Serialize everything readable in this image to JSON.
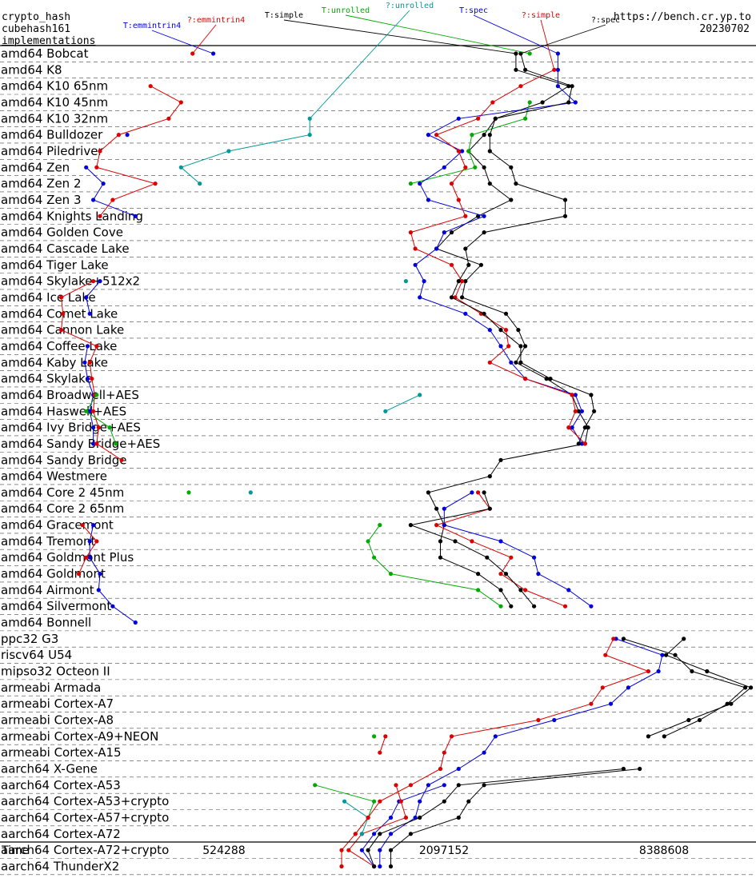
{
  "header": {
    "lines": [
      "crypto_hash",
      "cubehash161",
      "implementations"
    ],
    "url": "https://bench.cr.yp.to",
    "date": "20230702"
  },
  "chart_data": {
    "type": "line",
    "title": "crypto_hash cubehash161 implementations",
    "xlabel": "Time",
    "xscale": "log",
    "x_ticks": [
      524288,
      2097152,
      8388608
    ],
    "x_tick_labels": [
      "524288",
      "2097152",
      "8388608"
    ],
    "categories": [
      "amd64 Bobcat",
      "amd64 K8",
      "amd64 K10 65nm",
      "amd64 K10 45nm",
      "amd64 K10 32nm",
      "amd64 Bulldozer",
      "amd64 Piledriver",
      "amd64 Zen",
      "amd64 Zen 2",
      "amd64 Zen 3",
      "amd64 Knights Landing",
      "amd64 Golden Cove",
      "amd64 Cascade Lake",
      "amd64 Tiger Lake",
      "amd64 Skylake+512x2",
      "amd64 Ice Lake",
      "amd64 Comet Lake",
      "amd64 Cannon Lake",
      "amd64 Coffee Lake",
      "amd64 Kaby Lake",
      "amd64 Skylake",
      "amd64 Broadwell+AES",
      "amd64 Haswell+AES",
      "amd64 Ivy Bridge+AES",
      "amd64 Sandy Bridge+AES",
      "amd64 Sandy Bridge",
      "amd64 Westmere",
      "amd64 Core 2 45nm",
      "amd64 Core 2 65nm",
      "amd64 Gracemont",
      "amd64 Tremont",
      "amd64 Goldmont Plus",
      "amd64 Goldmont",
      "amd64 Airmont",
      "amd64 Silvermont",
      "amd64 Bonnell",
      "ppc32 G3",
      "riscv64 U54",
      "mipso32 Octeon II",
      "armeabi Armada",
      "armeabi Cortex-A7",
      "armeabi Cortex-A8",
      "armeabi Cortex-A9+NEON",
      "armeabi Cortex-A15",
      "aarch64 X-Gene",
      "aarch64 Cortex-A53",
      "aarch64 Cortex-A53+crypto",
      "aarch64 Cortex-A57+crypto",
      "aarch64 Cortex-A72",
      "aarch64 Cortex-A72+crypto",
      "aarch64 ThunderX2"
    ],
    "series": [
      {
        "name": "T:emmintrin4",
        "color": "#0000dd",
        "values": [
          490000,
          null,
          null,
          null,
          null,
          285000,
          null,
          220000,
          245000,
          230000,
          300000,
          null,
          null,
          null,
          240000,
          220000,
          225000,
          null,
          222000,
          218000,
          222000,
          230000,
          225000,
          230000,
          230000,
          null,
          null,
          null,
          null,
          230000,
          225000,
          225000,
          240000,
          238000,
          260000,
          300000,
          null,
          null,
          null,
          null,
          null,
          null,
          null,
          null,
          null,
          2100000,
          1580000,
          1500000,
          1350000,
          1250000,
          1350000
        ]
      },
      {
        "name": "?:emmintrin4",
        "color": "#dd0000",
        "values": [
          430000,
          null,
          330000,
          400000,
          370000,
          270000,
          240000,
          235000,
          340000,
          260000,
          240000,
          null,
          null,
          null,
          230000,
          188000,
          190000,
          188000,
          235000,
          225000,
          228000,
          232000,
          230000,
          238000,
          235000,
          275000,
          null,
          null,
          null,
          215000,
          235000,
          220000,
          210000,
          null,
          null,
          null,
          null,
          null,
          null,
          null,
          null,
          null,
          1450000,
          1400000,
          null,
          1550000,
          1600000,
          1650000,
          1250000,
          1150000,
          1350000
        ]
      },
      {
        "name": "T:simple",
        "color": "#000000",
        "values": [
          3300000,
          3300000,
          4600000,
          3900000,
          2900000,
          2700000,
          2450000,
          2700000,
          2800000,
          3200000,
          2600000,
          2200000,
          2000000,
          2650000,
          2400000,
          2350000,
          3100000,
          3350000,
          3500000,
          3300000,
          4000000,
          4700000,
          4900000,
          5200000,
          5100000,
          3000000,
          2800000,
          1900000,
          2000000,
          2100000,
          2050000,
          2050000,
          2600000,
          3000000,
          3200000,
          null,
          6500000,
          9000000,
          10000000,
          14000000,
          12500000,
          10500000,
          8400000,
          null,
          7200000,
          2700000,
          2450000,
          2300000,
          1700000,
          1500000,
          1500000
        ]
      },
      {
        "name": "T:unrolled",
        "color": "#00aa00",
        "values": [
          3600000,
          null,
          null,
          3600000,
          3500000,
          2500000,
          2450000,
          2550000,
          1700000,
          null,
          null,
          null,
          null,
          null,
          null,
          null,
          null,
          null,
          null,
          null,
          null,
          235000,
          220000,
          255000,
          265000,
          null,
          null,
          420000,
          null,
          1400000,
          1300000,
          1350000,
          1500000,
          2600000,
          3000000,
          null,
          null,
          null,
          null,
          null,
          null,
          null,
          1350000,
          null,
          null,
          930000,
          1350000,
          1300000,
          1200000,
          null,
          null
        ]
      },
      {
        "name": "?:unrolled",
        "color": "#009999",
        "values": [
          null,
          null,
          null,
          null,
          900000,
          900000,
          540000,
          400000,
          450000,
          null,
          null,
          null,
          null,
          null,
          1650000,
          null,
          null,
          null,
          null,
          null,
          null,
          1800000,
          1450000,
          null,
          null,
          null,
          null,
          620000,
          null,
          null,
          null,
          null,
          null,
          null,
          null,
          null,
          null,
          null,
          null,
          null,
          null,
          null,
          null,
          null,
          null,
          null,
          1120000,
          1300000,
          1250000,
          null,
          null
        ]
      },
      {
        "name": "T:spec",
        "color": "#0000dd",
        "values": [
          4300000,
          4300000,
          4300000,
          4800000,
          2300000,
          1900000,
          2350000,
          2100000,
          1800000,
          1900000,
          2700000,
          2100000,
          2000000,
          1750000,
          1850000,
          1800000,
          2400000,
          2800000,
          3000000,
          3200000,
          3500000,
          4800000,
          5000000,
          4700000,
          5000000,
          null,
          null,
          2500000,
          2100000,
          2100000,
          3000000,
          3700000,
          3800000,
          4600000,
          5300000,
          null,
          6200000,
          8300000,
          8100000,
          6700000,
          6000000,
          4200000,
          2900000,
          2700000,
          2300000,
          1900000,
          1800000,
          1750000,
          1500000,
          1400000,
          1400000
        ]
      },
      {
        "name": "?:simple",
        "color": "#dd0000",
        "values": [
          null,
          4200000,
          3400000,
          2850000,
          2600000,
          2000000,
          2300000,
          2400000,
          2200000,
          2300000,
          2400000,
          1700000,
          1750000,
          2200000,
          2350000,
          2250000,
          2650000,
          3100000,
          3150000,
          2800000,
          3500000,
          4700000,
          4800000,
          4600000,
          5100000,
          null,
          null,
          2600000,
          2800000,
          2000000,
          2500000,
          3200000,
          3000000,
          3500000,
          4500000,
          null,
          6100000,
          5800000,
          7600000,
          5700000,
          5300000,
          3800000,
          2200000,
          2100000,
          2050000,
          1700000,
          1400000,
          1300000,
          1200000,
          1100000,
          1100000
        ]
      },
      {
        "name": "?:spec",
        "color": "#000000",
        "values": [
          3400000,
          3500000,
          4700000,
          4600000,
          2900000,
          2800000,
          2800000,
          3200000,
          3300000,
          4500000,
          4500000,
          2700000,
          2400000,
          2450000,
          2300000,
          2200000,
          2700000,
          3000000,
          3400000,
          3400000,
          4100000,
          5300000,
          5400000,
          5100000,
          4900000,
          null,
          null,
          2700000,
          2800000,
          1700000,
          2250000,
          2750000,
          3100000,
          3400000,
          3700000,
          null,
          9500000,
          8500000,
          11000000,
          14500000,
          12800000,
          9800000,
          7600000,
          null,
          6500000,
          2300000,
          2100000,
          1800000,
          1400000,
          1300000,
          1350000
        ]
      }
    ]
  }
}
